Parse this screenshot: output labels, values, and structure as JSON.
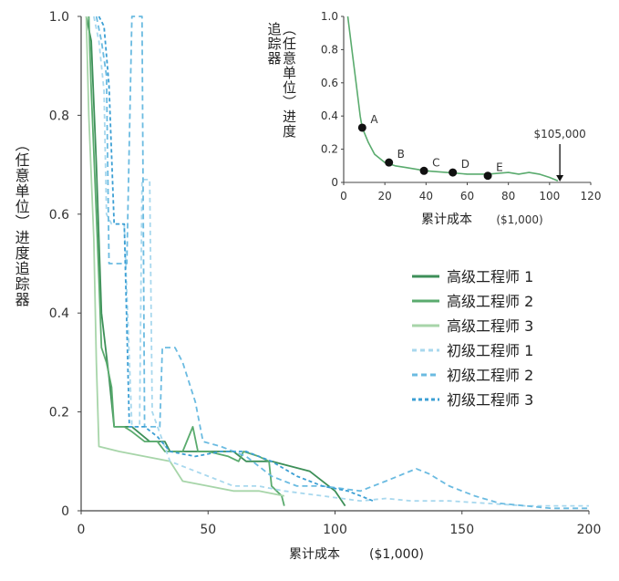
{
  "chart_data": [
    {
      "id": "main",
      "type": "line",
      "xlabel": "累计成本",
      "xunit": "($1,000)",
      "ylabel": "（任意单位）进度追踪器",
      "xlim": [
        0,
        200
      ],
      "ylim": [
        0,
        1.0
      ],
      "xticks": [
        0,
        50,
        100,
        150,
        200
      ],
      "yticks": [
        "0",
        "0.2",
        "0.4",
        "0.6",
        "0.8",
        "1.0"
      ],
      "ytick_values": [
        0,
        0.2,
        0.4,
        0.6,
        0.8,
        1.0
      ],
      "legend_position": "right",
      "series": [
        {
          "name": "高级工程师 1",
          "color": "#3d8f58",
          "dash": "solid",
          "points": [
            [
              2,
              1.0
            ],
            [
              4,
              0.95
            ],
            [
              6,
              0.7
            ],
            [
              8,
              0.4
            ],
            [
              11,
              0.27
            ],
            [
              13,
              0.17
            ],
            [
              20,
              0.17
            ],
            [
              27,
              0.14
            ],
            [
              33,
              0.14
            ],
            [
              35,
              0.12
            ],
            [
              45,
              0.12
            ],
            [
              50,
              0.12
            ],
            [
              60,
              0.12
            ],
            [
              65,
              0.1
            ],
            [
              75,
              0.1
            ],
            [
              90,
              0.08
            ],
            [
              100,
              0.04
            ],
            [
              104,
              0.01
            ]
          ]
        },
        {
          "name": "高级工程师 2",
          "color": "#5aab6e",
          "dash": "solid",
          "points": [
            [
              3,
              1.0
            ],
            [
              4,
              0.85
            ],
            [
              6,
              0.6
            ],
            [
              7,
              0.47
            ],
            [
              8,
              0.33
            ],
            [
              10,
              0.3
            ],
            [
              12,
              0.25
            ],
            [
              13,
              0.17
            ],
            [
              17,
              0.17
            ],
            [
              20,
              0.16
            ],
            [
              25,
              0.14
            ],
            [
              30,
              0.14
            ],
            [
              33,
              0.12
            ],
            [
              40,
              0.12
            ],
            [
              44,
              0.17
            ],
            [
              46,
              0.12
            ],
            [
              50,
              0.12
            ],
            [
              58,
              0.11
            ],
            [
              62,
              0.1
            ],
            [
              64,
              0.12
            ],
            [
              70,
              0.11
            ],
            [
              74,
              0.1
            ],
            [
              75,
              0.05
            ],
            [
              79,
              0.03
            ],
            [
              80,
              0.01
            ]
          ]
        },
        {
          "name": "高级工程师 3",
          "color": "#a7d5a9",
          "dash": "solid",
          "points": [
            [
              2,
              1.0
            ],
            [
              3,
              0.8
            ],
            [
              5,
              0.55
            ],
            [
              6,
              0.3
            ],
            [
              7,
              0.13
            ],
            [
              15,
              0.12
            ],
            [
              25,
              0.11
            ],
            [
              35,
              0.1
            ],
            [
              40,
              0.06
            ],
            [
              50,
              0.05
            ],
            [
              60,
              0.04
            ],
            [
              70,
              0.04
            ],
            [
              80,
              0.03
            ]
          ]
        },
        {
          "name": "初级工程师 1",
          "color": "#a8d8ee",
          "dash": "5,4",
          "points": [
            [
              5,
              1.0
            ],
            [
              7,
              0.95
            ],
            [
              9,
              0.85
            ],
            [
              10,
              0.6
            ],
            [
              12,
              0.58
            ],
            [
              17,
              0.58
            ],
            [
              20,
              0.17
            ],
            [
              23,
              0.17
            ],
            [
              24,
              0.67
            ],
            [
              27,
              0.67
            ],
            [
              28,
              0.2
            ],
            [
              35,
              0.1
            ],
            [
              50,
              0.07
            ],
            [
              60,
              0.05
            ],
            [
              70,
              0.05
            ],
            [
              80,
              0.04
            ],
            [
              95,
              0.03
            ],
            [
              110,
              0.02
            ],
            [
              120,
              0.025
            ],
            [
              130,
              0.02
            ],
            [
              145,
              0.02
            ],
            [
              160,
              0.015
            ],
            [
              175,
              0.01
            ],
            [
              185,
              0.01
            ],
            [
              200,
              0.01
            ]
          ]
        },
        {
          "name": "初级工程师 2",
          "color": "#6bbbe1",
          "dash": "6,4",
          "points": [
            [
              6,
              1.0
            ],
            [
              8,
              0.95
            ],
            [
              10,
              0.88
            ],
            [
              11,
              0.5
            ],
            [
              18,
              0.5
            ],
            [
              20,
              1.0
            ],
            [
              24,
              1.0
            ],
            [
              25,
              0.17
            ],
            [
              31,
              0.17
            ],
            [
              32,
              0.33
            ],
            [
              37,
              0.33
            ],
            [
              40,
              0.3
            ],
            [
              45,
              0.22
            ],
            [
              48,
              0.14
            ],
            [
              55,
              0.13
            ],
            [
              65,
              0.11
            ],
            [
              75,
              0.07
            ],
            [
              85,
              0.05
            ],
            [
              95,
              0.05
            ],
            [
              110,
              0.04
            ],
            [
              120,
              0.06
            ],
            [
              132,
              0.085
            ],
            [
              137,
              0.075
            ],
            [
              145,
              0.05
            ],
            [
              155,
              0.03
            ],
            [
              165,
              0.015
            ],
            [
              175,
              0.01
            ],
            [
              185,
              0.005
            ],
            [
              200,
              0.005
            ]
          ]
        },
        {
          "name": "初级工程师 3",
          "color": "#3c9fd4",
          "dash": "4,3",
          "points": [
            [
              7,
              1.0
            ],
            [
              9,
              0.98
            ],
            [
              11,
              0.86
            ],
            [
              13,
              0.58
            ],
            [
              17,
              0.58
            ],
            [
              19,
              0.17
            ],
            [
              25,
              0.17
            ],
            [
              30,
              0.15
            ],
            [
              35,
              0.12
            ],
            [
              45,
              0.11
            ],
            [
              55,
              0.12
            ],
            [
              65,
              0.12
            ],
            [
              75,
              0.1
            ],
            [
              85,
              0.07
            ],
            [
              95,
              0.05
            ],
            [
              105,
              0.04
            ],
            [
              110,
              0.03
            ],
            [
              115,
              0.02
            ]
          ]
        }
      ]
    },
    {
      "id": "inset",
      "type": "line",
      "xlabel": "累计成本",
      "xunit": "($1,000)",
      "ylabel": "（任意单位）进度追踪器",
      "xlim": [
        0,
        120
      ],
      "ylim": [
        0,
        1.0
      ],
      "xticks": [
        0,
        20,
        40,
        60,
        80,
        100,
        120
      ],
      "yticks": [
        "0",
        "0.2",
        "0.4",
        "0.6",
        "0.8",
        "1.0"
      ],
      "ytick_values": [
        0,
        0.2,
        0.4,
        0.6,
        0.8,
        1.0
      ],
      "series": [
        {
          "name": "inset-progress",
          "color": "#5aab6e",
          "dash": "solid",
          "points": [
            [
              2,
              1.0
            ],
            [
              4,
              0.8
            ],
            [
              6,
              0.6
            ],
            [
              8,
              0.4
            ],
            [
              9,
              0.33
            ],
            [
              12,
              0.24
            ],
            [
              15,
              0.17
            ],
            [
              20,
              0.12
            ],
            [
              25,
              0.1
            ],
            [
              30,
              0.09
            ],
            [
              40,
              0.07
            ],
            [
              50,
              0.06
            ],
            [
              60,
              0.05
            ],
            [
              70,
              0.05
            ],
            [
              80,
              0.06
            ],
            [
              85,
              0.05
            ],
            [
              90,
              0.06
            ],
            [
              95,
              0.05
            ],
            [
              100,
              0.03
            ],
            [
              104,
              0.01
            ]
          ]
        }
      ],
      "markers": [
        {
          "label": "A",
          "x": 9,
          "y": 0.33
        },
        {
          "label": "B",
          "x": 22,
          "y": 0.12
        },
        {
          "label": "C",
          "x": 39,
          "y": 0.07
        },
        {
          "label": "D",
          "x": 53,
          "y": 0.06
        },
        {
          "label": "E",
          "x": 70,
          "y": 0.04
        }
      ],
      "annotation": {
        "text": "$105,000",
        "x": 105,
        "y": 0.0
      }
    }
  ]
}
